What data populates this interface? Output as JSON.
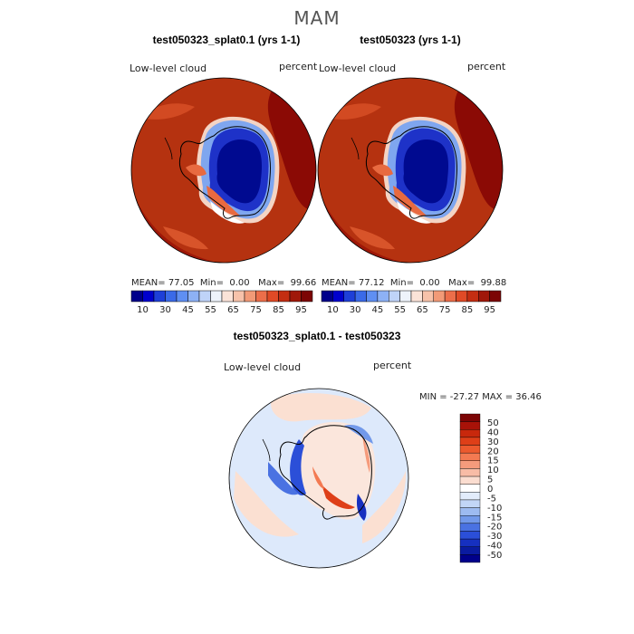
{
  "season": "MAM",
  "panels": [
    {
      "title": "test050323_splat0.1 (yrs 1-1)",
      "variable": "Low-level cloud",
      "units": "percent",
      "stats": {
        "mean_label": "MEAN=",
        "mean": "77.05",
        "min_label": "Min=",
        "min": "0.00",
        "max_label": "Max=",
        "max": "99.66"
      }
    },
    {
      "title": "test050323 (yrs 1-1)",
      "variable": "Low-level cloud",
      "units": "percent",
      "stats": {
        "mean_label": "MEAN=",
        "mean": "77.12",
        "min_label": "Min=",
        "min": "0.00",
        "max_label": "Max=",
        "max": "99.88"
      }
    }
  ],
  "abs_colorbar": {
    "colors": [
      "#00008b",
      "#0000cd",
      "#1e3fd8",
      "#3a6ae8",
      "#5f8ff2",
      "#8db1f5",
      "#bfd3f8",
      "#eef3fb",
      "#fbe3d8",
      "#f7c2aa",
      "#f29a77",
      "#ec6e4a",
      "#e04a26",
      "#c42e12",
      "#a0180a",
      "#7c0505"
    ],
    "tick_labels": [
      "10",
      "30",
      "45",
      "55",
      "65",
      "75",
      "85",
      "95"
    ]
  },
  "diff_panel": {
    "title": "test050323_splat0.1 - test050323",
    "variable": "Low-level cloud",
    "units": "percent",
    "stats_text": "MIN = -27.27 MAX =  36.46"
  },
  "diff_colorbar": {
    "colors": [
      "#7c0505",
      "#a81208",
      "#c8280c",
      "#de3f18",
      "#ec5a2e",
      "#f37a52",
      "#f59b7c",
      "#f8bca6",
      "#fbddd0",
      "#ffffff",
      "#e2ecfb",
      "#c2d6f7",
      "#9dbbf1",
      "#7299ea",
      "#4a72e2",
      "#2b4fd8",
      "#1630c0",
      "#0a1ba0",
      "#00008b"
    ],
    "tick_labels": [
      "50",
      "40",
      "30",
      "20",
      "15",
      "10",
      "5",
      "0",
      "-5",
      "-10",
      "-15",
      "-20",
      "-30",
      "-40",
      "-50"
    ]
  },
  "icons": [
    "polar-map",
    "antarctica-coastline"
  ]
}
